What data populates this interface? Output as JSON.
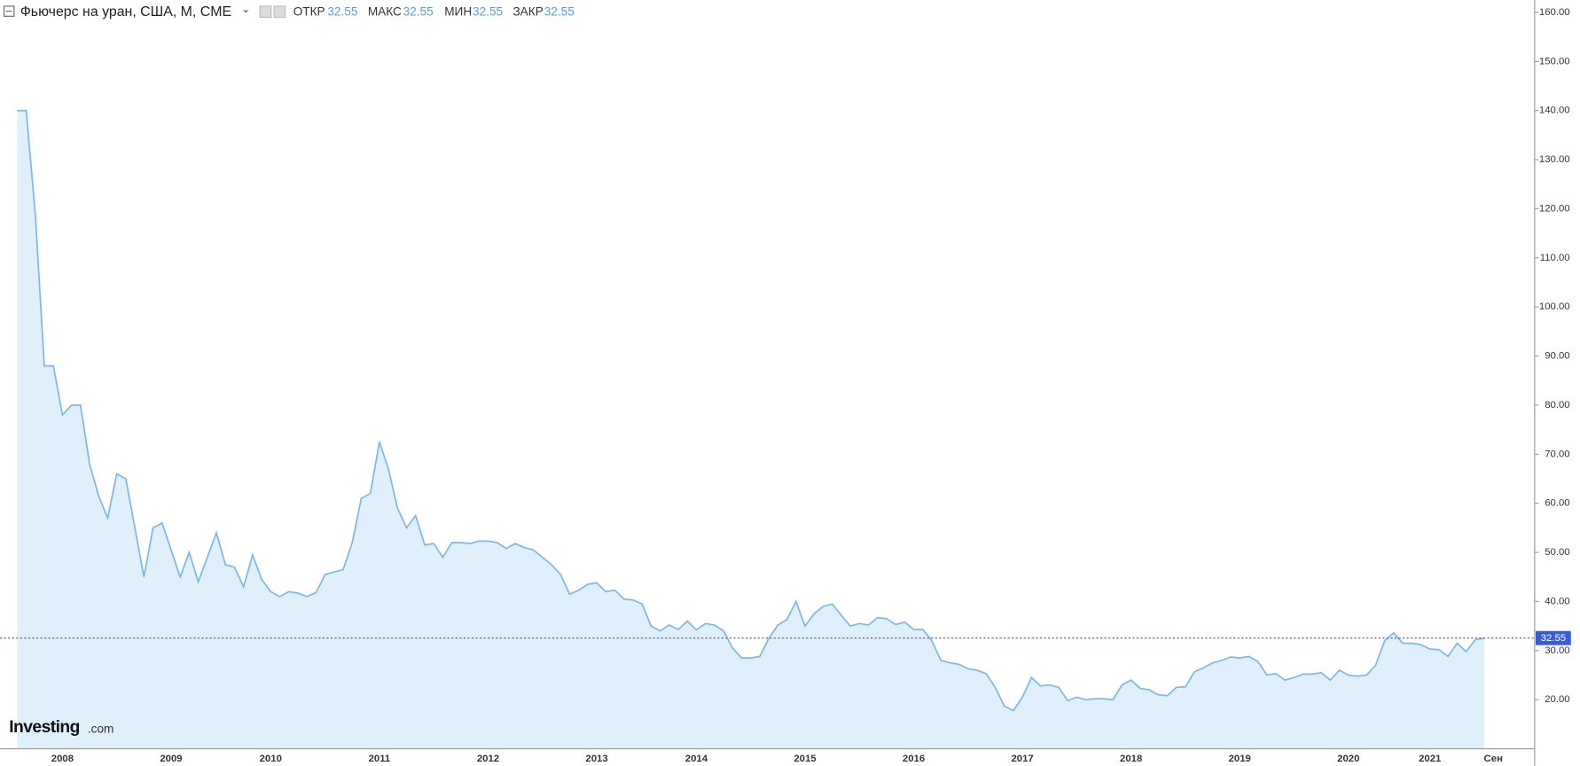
{
  "chart_data": {
    "type": "area",
    "title": "Фьючерс на уран, США, М, CME",
    "ohlc": [
      {
        "label": "ОТКР",
        "value": 32.55
      },
      {
        "label": "МАКС",
        "value": 32.55
      },
      {
        "label": "МИН",
        "value": 32.55
      },
      {
        "label": "ЗАКР",
        "value": 32.55
      }
    ],
    "last_price": 32.55,
    "logo": {
      "brand": "Investing",
      "suffix": ".com"
    },
    "color": "#7db7e8",
    "fill_color": "#e0f0fa",
    "last_price_color": "#3a5bd6",
    "categories": [
      null,
      null,
      null,
      null,
      null,
      "2008",
      null,
      null,
      null,
      null,
      null,
      null,
      null,
      null,
      null,
      null,
      null,
      "2009",
      null,
      null,
      null,
      null,
      null,
      null,
      null,
      null,
      null,
      null,
      "2010",
      null,
      null,
      null,
      null,
      null,
      null,
      null,
      null,
      null,
      null,
      null,
      "2011",
      null,
      null,
      null,
      null,
      null,
      null,
      null,
      null,
      null,
      null,
      null,
      "2012",
      null,
      null,
      null,
      null,
      null,
      null,
      null,
      null,
      null,
      null,
      null,
      "2013",
      null,
      null,
      null,
      null,
      null,
      null,
      null,
      null,
      null,
      null,
      "2014",
      null,
      null,
      null,
      null,
      null,
      null,
      null,
      null,
      null,
      null,
      null,
      "2015",
      null,
      null,
      null,
      null,
      null,
      null,
      null,
      null,
      null,
      null,
      null,
      "2016",
      null,
      null,
      null,
      null,
      null,
      null,
      null,
      null,
      null,
      null,
      null,
      "2017",
      null,
      null,
      null,
      null,
      null,
      null,
      null,
      null,
      null,
      null,
      null,
      "2018",
      null,
      null,
      null,
      null,
      null,
      null,
      null,
      null,
      null,
      null,
      null,
      "2019",
      null,
      null,
      null,
      null,
      null,
      null,
      null,
      null,
      null,
      null,
      null,
      "2020",
      null,
      null,
      null,
      null,
      null,
      null,
      null,
      null,
      "2021",
      null,
      null,
      null,
      null,
      null,
      null,
      "Сен"
    ],
    "values": [
      140,
      140,
      119,
      88,
      88,
      78,
      80,
      80,
      68,
      61.5,
      57,
      66,
      65,
      55,
      45,
      55,
      56,
      50.5,
      45,
      50,
      44,
      49,
      54,
      47.5,
      47,
      43,
      49.5,
      44.5,
      42,
      41,
      42,
      41.7,
      41,
      41.8,
      45.5,
      46,
      46.5,
      52,
      61,
      62,
      72.5,
      67,
      59,
      55,
      57.5,
      51.5,
      51.8,
      49,
      52,
      52,
      51.8,
      52.3,
      52.3,
      52,
      50.8,
      51.8,
      51,
      50.5,
      49,
      47.5,
      45.5,
      41.5,
      42.3,
      43.5,
      43.8,
      42,
      42.3,
      40.5,
      40.3,
      39.5,
      35,
      34,
      35.2,
      34.3,
      36,
      34.2,
      35.5,
      35.2,
      34,
      30.5,
      28.5,
      28.5,
      28.8,
      32.5,
      35.2,
      36.3,
      40,
      35,
      37.5,
      39,
      39.5,
      37.2,
      35,
      35.5,
      35.2,
      36.7,
      36.5,
      35.3,
      35.8,
      34.3,
      34.3,
      32,
      28,
      27.5,
      27.2,
      26.3,
      26,
      25.3,
      22.5,
      18.7,
      17.8,
      20.5,
      24.5,
      22.8,
      23,
      22.5,
      19.8,
      20.5,
      20,
      20.2,
      20.2,
      20,
      23,
      24,
      22.3,
      22,
      21,
      20.8,
      22.5,
      22.6,
      25.7,
      26.5,
      27.5,
      28,
      28.7,
      28.5,
      28.8,
      27.8,
      25,
      25.3,
      24,
      24.5,
      25.2,
      25.2,
      25.5,
      24,
      26,
      25,
      24.8,
      25,
      27,
      32,
      33.6,
      31.5,
      31.5,
      31.2,
      30.3,
      30.2,
      28.8,
      31.5,
      29.8,
      32.2,
      32.55,
      null
    ],
    "ylim": [
      10,
      162.5
    ],
    "yticks": [
      {
        "value": 20,
        "label": "20.00"
      },
      {
        "value": 30,
        "label": "30.00"
      },
      {
        "value": 40,
        "label": "40.00"
      },
      {
        "value": 50,
        "label": "50.00"
      },
      {
        "value": 60,
        "label": "60.00"
      },
      {
        "value": 70,
        "label": "70.00"
      },
      {
        "value": 80,
        "label": "80.00"
      },
      {
        "value": 90,
        "label": "90.00"
      },
      {
        "value": 100,
        "label": "100.00"
      },
      {
        "value": 110,
        "label": "110.00"
      },
      {
        "value": 120,
        "label": "120.00"
      },
      {
        "value": 130,
        "label": "130.00"
      },
      {
        "value": 140,
        "label": "140.00"
      },
      {
        "value": 150,
        "label": "150.00"
      },
      {
        "value": 160,
        "label": "160.00"
      }
    ],
    "grid": false
  }
}
